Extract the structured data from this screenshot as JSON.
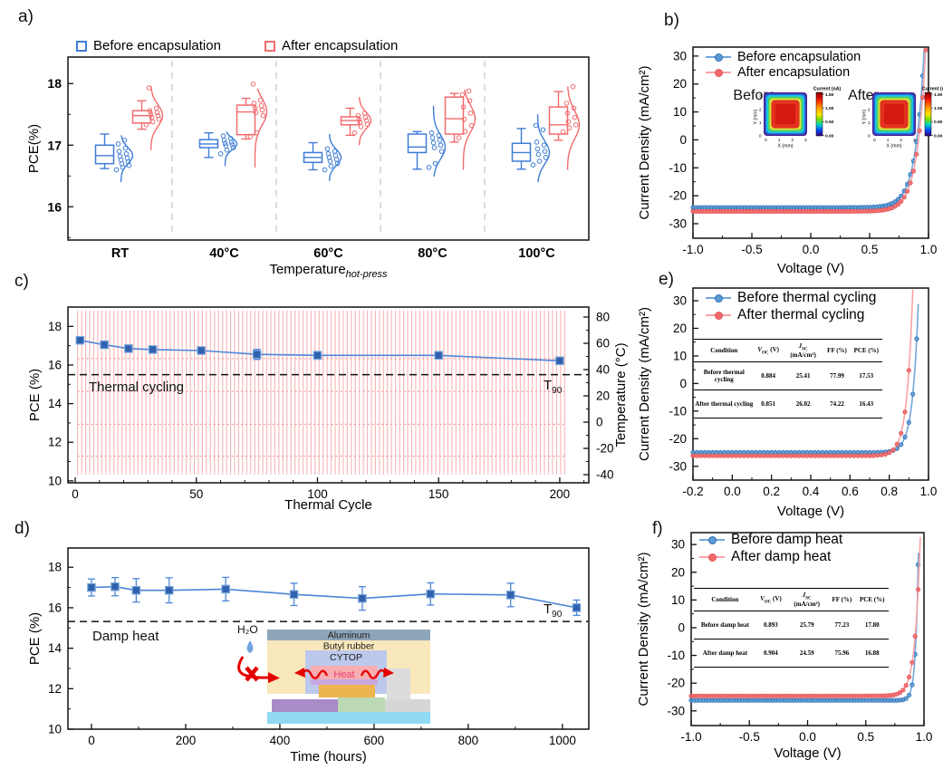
{
  "figure": {
    "panel_labels": {
      "a": "a)",
      "b": "b)",
      "c": "c)",
      "d": "d)",
      "e": "e)",
      "f": "f)"
    }
  },
  "colors": {
    "blue": "#3E7DD6",
    "blue_line": "#74A7DC",
    "blue_marker": "#5B9BD5",
    "blue_dark": "#2E6DB4",
    "red": "#F26B6D",
    "red_line": "#F8A2A4",
    "red_marker": "#F2696B",
    "red_dark": "#E05557",
    "square_fill": "#3061AE",
    "square_edge": "#79A7DB",
    "stab_line": "#4C86D8",
    "cycle_red": "#F7A2A2",
    "separator": "#C8C8C8"
  },
  "legends": {
    "a": [
      "Before encapsulation",
      "After encapsulation"
    ],
    "b": [
      "Before encapsulation",
      "After encapsulation"
    ],
    "e": [
      "Before thermal cycling",
      "After thermal cycling"
    ],
    "f": [
      "Before damp heat",
      "After damp heat"
    ]
  },
  "annotations": {
    "c_text": "Thermal cycling",
    "d_text": "Damp heat",
    "t90_sym": "T",
    "t90_sub": "90"
  },
  "inset_b": {
    "colorbar_title": "Current (nA)",
    "colorbar_ticks": [
      "1.50",
      "1.00",
      "0.50",
      "0.00"
    ],
    "xlabel": "X (mm)",
    "ylabel": "Y (mm)",
    "axis_ticks": [
      "0",
      "1",
      "2",
      "3"
    ],
    "before": "Before",
    "after": "After"
  },
  "inset_d": {
    "h2o": "H₂O",
    "aluminum": "Aluminum",
    "butyl": "Butyl rubber",
    "cytop": "CYTOP",
    "heat": "Heat"
  },
  "tables": {
    "h_condition": "Condition",
    "sym_v": "V",
    "sub_oc": "OC",
    "unit_v": "(V)",
    "sym_j": "J",
    "sub_sc": "SC",
    "unit_j": "(mA/cm²)",
    "h_ff": "FF (%)",
    "h_pce": "PCE (%)",
    "e": {
      "rows": [
        {
          "c": "Before thermal cycling",
          "voc": "0.884",
          "jsc": "25.41",
          "ff": "77.99",
          "pce": "17.53"
        },
        {
          "c": "After thermal cycling",
          "voc": "0.851",
          "jsc": "26.02",
          "ff": "74.22",
          "pce": "16.43"
        }
      ]
    },
    "f": {
      "rows": [
        {
          "c": "Before damp heat",
          "voc": "0.893",
          "jsc": "25.79",
          "ff": "77.23",
          "pce": "17.80"
        },
        {
          "c": "After damp heat",
          "voc": "0.904",
          "jsc": "24.59",
          "ff": "75.96",
          "pce": "16.88"
        }
      ]
    }
  },
  "chart_data": [
    {
      "id": "a",
      "type": "box",
      "ylabel": "PCE(%)",
      "ylim": [
        15.46,
        18.43
      ],
      "yticks": [
        16,
        17,
        18
      ],
      "yminor": [
        15.5,
        16.5,
        17.5
      ],
      "categories": [
        "RT",
        "40°C",
        "60°C",
        "80°C",
        "100°C"
      ],
      "xlabel_parts": [
        {
          "t": "Temperature"
        },
        {
          "t": "hot-press",
          "sub": true,
          "italic": true
        }
      ],
      "series": [
        {
          "name": "Before encapsulation",
          "color": "#3E7DD6",
          "boxes": [
            {
              "lo": 16.62,
              "q1": 16.7,
              "med": 16.83,
              "q3": 17.0,
              "hi": 17.18,
              "violin": [
                16.4,
                17.16
              ],
              "pts": [
                16.6,
                16.64,
                16.67,
                16.7,
                16.73,
                16.76,
                16.79,
                16.82,
                16.86,
                16.9,
                16.95,
                17.02,
                17.08
              ]
            },
            {
              "lo": 16.8,
              "q1": 16.96,
              "med": 17.02,
              "q3": 17.09,
              "hi": 17.2,
              "violin": [
                16.66,
                17.22
              ],
              "pts": [
                16.86,
                16.92,
                16.96,
                16.99,
                17.01,
                17.03,
                17.05,
                17.08,
                17.11,
                17.15
              ]
            },
            {
              "lo": 16.6,
              "q1": 16.72,
              "med": 16.8,
              "q3": 16.88,
              "hi": 17.04,
              "violin": [
                16.42,
                17.18
              ],
              "pts": [
                16.6,
                16.66,
                16.7,
                16.74,
                16.77,
                16.8,
                16.83,
                16.86,
                16.9,
                16.94
              ]
            },
            {
              "lo": 16.61,
              "q1": 16.88,
              "med": 16.97,
              "q3": 17.18,
              "hi": 17.22,
              "violin": [
                16.49,
                17.64
              ],
              "pts": [
                16.64,
                16.7,
                16.9,
                16.96,
                17.0,
                17.04,
                17.08,
                17.12,
                17.16,
                17.2
              ]
            },
            {
              "lo": 16.61,
              "q1": 16.74,
              "med": 16.88,
              "q3": 17.03,
              "hi": 17.27,
              "violin": [
                16.4,
                17.5
              ],
              "pts": [
                16.68,
                16.74,
                16.8,
                16.85,
                16.9,
                16.94,
                17.0,
                17.05,
                17.25,
                17.32
              ]
            }
          ]
        },
        {
          "name": "After encapsulation",
          "color": "#F26B6D",
          "boxes": [
            {
              "lo": 17.26,
              "q1": 17.36,
              "med": 17.48,
              "q3": 17.56,
              "hi": 17.72,
              "violin": [
                16.92,
                17.96
              ],
              "pts": [
                17.33,
                17.38,
                17.42,
                17.45,
                17.48,
                17.5,
                17.53,
                17.56,
                17.6,
                17.93
              ]
            },
            {
              "lo": 17.1,
              "q1": 17.17,
              "med": 17.54,
              "q3": 17.65,
              "hi": 17.76,
              "violin": [
                16.64,
                17.92
              ],
              "pts": [
                17.14,
                17.2,
                17.48,
                17.53,
                17.57,
                17.6,
                17.64,
                17.68,
                17.73,
                17.99
              ]
            },
            {
              "lo": 17.16,
              "q1": 17.33,
              "med": 17.4,
              "q3": 17.46,
              "hi": 17.6,
              "violin": [
                17.0,
                17.78
              ],
              "pts": [
                17.2,
                17.3,
                17.34,
                17.37,
                17.4,
                17.42,
                17.45,
                17.48,
                17.52
              ]
            },
            {
              "lo": 17.05,
              "q1": 17.18,
              "med": 17.43,
              "q3": 17.78,
              "hi": 17.84,
              "violin": [
                16.6,
                17.9
              ],
              "pts": [
                17.12,
                17.22,
                17.32,
                17.42,
                17.52,
                17.62,
                17.72,
                17.82,
                17.88
              ]
            },
            {
              "lo": 17.08,
              "q1": 17.18,
              "med": 17.33,
              "q3": 17.62,
              "hi": 17.87,
              "violin": [
                16.6,
                17.95
              ],
              "pts": [
                17.22,
                17.28,
                17.33,
                17.38,
                17.45,
                17.52,
                17.6,
                17.68,
                17.95
              ]
            }
          ]
        }
      ]
    },
    {
      "id": "b",
      "type": "jv",
      "xlabel": "Voltage (V)",
      "ylabel": "Current Density (mA/cm²)",
      "xlim": [
        -1.0,
        1.0
      ],
      "ylim": [
        -35.2,
        33.2
      ],
      "xticks": [
        -1.0,
        -0.5,
        0.0,
        0.5,
        1.0
      ],
      "xticklabels": [
        "-1.0",
        "-0.5",
        "0.0",
        "0.5",
        "1.0"
      ],
      "xminor": [
        -0.75,
        -0.25,
        0.25,
        0.75
      ],
      "yticks": [
        -30,
        -20,
        -10,
        0,
        10,
        20,
        30
      ],
      "yminor": [
        -25,
        -15,
        -5,
        5,
        15,
        25
      ],
      "marker_step": 0.026,
      "series": [
        {
          "name": "Before encapsulation",
          "line": "#74A7DC",
          "marker": "#5B9BD5",
          "edge": "#2E6DB4",
          "jsc": 24.2,
          "voc": 0.9,
          "w": 0.075
        },
        {
          "name": "After encapsulation",
          "line": "#F8A2A4",
          "marker": "#F2696B",
          "edge": "#E05557",
          "jsc": 25.6,
          "voc": 0.915,
          "w": 0.075
        }
      ]
    },
    {
      "id": "c",
      "type": "stability",
      "xlabel": "Thermal Cycle",
      "ylabel": "PCE (%)",
      "xlim": [
        -3,
        212
      ],
      "ylim": [
        9.9,
        19.0
      ],
      "xticks": [
        0,
        50,
        100,
        150,
        200
      ],
      "xminor_step": 10,
      "yticks": [
        10,
        12,
        14,
        16,
        18
      ],
      "yminor": [
        11,
        13,
        15,
        17
      ],
      "y2label": "Temperature (°C)",
      "y2lim": [
        -46.2,
        87.6
      ],
      "y2ticks": [
        -40,
        -20,
        0,
        20,
        40,
        60,
        80
      ],
      "y2minor": [
        -30,
        -10,
        10,
        30,
        50,
        70
      ],
      "x": [
        2,
        12,
        22,
        32,
        52,
        75,
        100,
        150,
        200
      ],
      "y": [
        17.28,
        17.05,
        16.85,
        16.8,
        16.75,
        16.55,
        16.5,
        16.5,
        16.22
      ],
      "yerr": [
        0.12,
        0.15,
        0.17,
        0.15,
        0.18,
        0.26,
        0.2,
        0.14,
        0.16
      ],
      "t90": 15.5,
      "cycles": {
        "xmin": 1,
        "xmax": 202,
        "count": 122,
        "tmin": -40,
        "tmax": 85,
        "dotted": [
          16.33,
          14.63,
          12.93,
          11.28
        ]
      }
    },
    {
      "id": "d",
      "type": "stability",
      "xlabel": "Time (hours)",
      "ylabel": "PCE (%)",
      "xlim": [
        -50,
        1056
      ],
      "ylim": [
        10,
        18.95
      ],
      "xticks": [
        0,
        200,
        400,
        600,
        800,
        1000
      ],
      "xminor_step": 100,
      "yticks": [
        10,
        12,
        14,
        16,
        18
      ],
      "yminor": [
        11,
        13,
        15,
        17
      ],
      "x": [
        0,
        50,
        95,
        165,
        285,
        430,
        575,
        720,
        890,
        1030
      ],
      "y": [
        17.0,
        17.04,
        16.86,
        16.86,
        16.92,
        16.66,
        16.46,
        16.68,
        16.63,
        16.0
      ],
      "yerr": [
        0.42,
        0.45,
        0.58,
        0.62,
        0.58,
        0.55,
        0.58,
        0.55,
        0.58,
        0.38
      ],
      "t90": 15.32
    },
    {
      "id": "e",
      "type": "jv",
      "xlabel": "Voltage (V)",
      "ylabel": "Current Density (mA/cm²)",
      "xlim": [
        -0.2,
        1.0
      ],
      "ylim": [
        -35.0,
        34.6
      ],
      "xticks": [
        -0.2,
        0.0,
        0.2,
        0.4,
        0.6,
        0.8,
        1.0
      ],
      "xticklabels": [
        "-0.2",
        "0.0",
        "0.2",
        "0.4",
        "0.6",
        "0.8",
        "1.0"
      ],
      "xminor": [
        -0.1,
        0.1,
        0.3,
        0.5,
        0.7,
        0.9
      ],
      "yticks": [
        -30,
        -20,
        -10,
        0,
        10,
        20,
        30
      ],
      "yminor": [
        -25,
        -15,
        -5,
        5,
        15,
        25
      ],
      "marker_step": 0.02,
      "series": [
        {
          "name": "Before thermal cycling",
          "line": "#74A7DC",
          "marker": "#5B9BD5",
          "edge": "#2E6DB4",
          "jsc": 25.0,
          "voc": 0.925,
          "w": 0.03
        },
        {
          "name": "After thermal cycling",
          "line": "#F8A2A4",
          "marker": "#F2696B",
          "edge": "#E05557",
          "jsc": 26.2,
          "voc": 0.895,
          "w": 0.03
        }
      ]
    },
    {
      "id": "f",
      "type": "jv",
      "xlabel": "Voltage (V)",
      "ylabel": "Current Density (mA/cm²)",
      "xlim": [
        -1.0,
        1.0
      ],
      "ylim": [
        -35.3,
        34.3
      ],
      "xticks": [
        -1.0,
        -0.5,
        0.0,
        0.5,
        1.0
      ],
      "xticklabels": [
        "-1.0",
        "-0.5",
        "0.0",
        "0.5",
        "1.0"
      ],
      "xminor": [
        -0.75,
        -0.25,
        0.25,
        0.75
      ],
      "yticks": [
        -30,
        -20,
        -10,
        0,
        10,
        20,
        30
      ],
      "yminor": [
        -25,
        -15,
        -5,
        5,
        15,
        25
      ],
      "marker_step": 0.026,
      "series": [
        {
          "name": "Before damp heat",
          "line": "#74A7DC",
          "marker": "#5B9BD5",
          "edge": "#2E6DB4",
          "jsc": 26.2,
          "voc": 0.935,
          "w": 0.024
        },
        {
          "name": "After damp heat",
          "line": "#F8A2A4",
          "marker": "#F2696B",
          "edge": "#E05557",
          "jsc": 24.6,
          "voc": 0.93,
          "w": 0.045
        }
      ]
    }
  ]
}
